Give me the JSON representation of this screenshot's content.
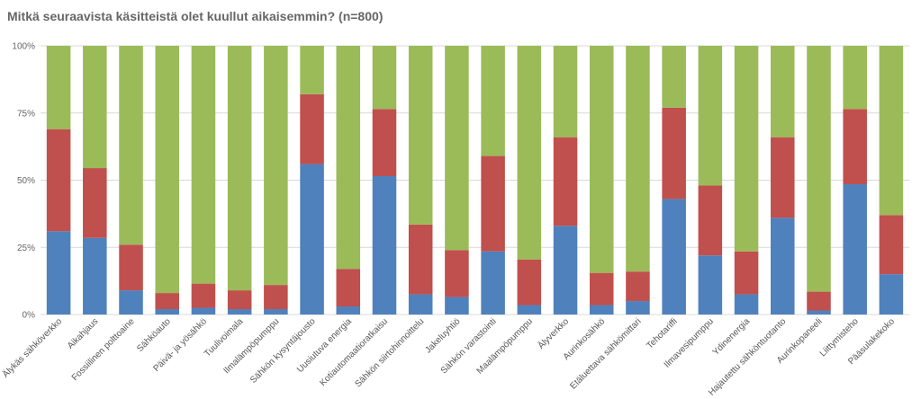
{
  "chart_data": {
    "type": "bar",
    "stacked": true,
    "percent": true,
    "title": "Mitkä seuraavista käsitteistä olet kuullut aikaisemmin? (n=800)",
    "xlabel": "",
    "ylabel": "",
    "ylim": [
      0,
      100
    ],
    "yticks": [
      "0%",
      "25%",
      "50%",
      "75%",
      "100%"
    ],
    "legend": "none",
    "categories": [
      "Älykäs sähköverkko",
      "Aikahjaus",
      "Fossiilinen polttoaine",
      "Sähköauto",
      "Päivä- ja yösähkö",
      "Tuulivoimala",
      "Ilmalämpöpumppu",
      "Sähkön kysyntäjousto",
      "Uusiutuva energia",
      "Kotiautomaatioratkaisu",
      "Sähkön siirtohinnoittelu",
      "Jakeluyhtiö",
      "Sähkön varastointi",
      "Maalämpöpumppu",
      "Älyverkko",
      "Aurinkosähkö",
      "Etäluettava sähkömittari",
      "Tehotariffi",
      "Ilmavesipumppu",
      "Ydinenergia",
      "Hajautettu sähköntuotanto",
      "Aurinkopaneeli",
      "Liittymisteho",
      "Pääsulakekoko"
    ],
    "series": [
      {
        "name": "blue",
        "color": "#4f81bd",
        "values": [
          31,
          28.5,
          9,
          2,
          2.5,
          2,
          2,
          56,
          3,
          51.5,
          7.5,
          6.5,
          23.5,
          3.5,
          33,
          3.5,
          5,
          43,
          22,
          7.5,
          36,
          1.5,
          48.5,
          15
        ]
      },
      {
        "name": "red",
        "color": "#c0504d",
        "values": [
          38,
          26,
          17,
          6,
          9,
          7,
          9,
          26,
          14,
          25,
          26,
          17.5,
          35.5,
          17,
          33,
          12,
          11,
          34,
          26,
          16,
          30,
          7,
          28,
          22
        ]
      },
      {
        "name": "green",
        "color": "#9bbb59",
        "values": [
          31,
          45.5,
          74,
          92,
          88.5,
          91,
          89,
          18,
          83,
          23.5,
          66.5,
          76,
          41,
          79.5,
          34,
          84.5,
          84,
          23,
          52,
          76.5,
          34,
          91.5,
          23.5,
          63
        ]
      }
    ]
  }
}
